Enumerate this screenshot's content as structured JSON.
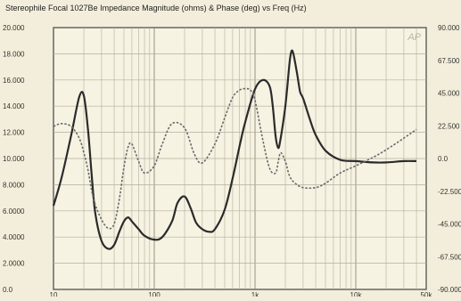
{
  "chart_data": {
    "type": "line",
    "title": "Stereophile Focal 1027Be Impedance Magnitude (ohms) & Phase (deg) vs Freq (Hz)",
    "watermark": "AP",
    "xscale": "log",
    "xlim": [
      10,
      50000
    ],
    "ylim_left": [
      0,
      20
    ],
    "ylim_right": [
      -90,
      90
    ],
    "grid": true,
    "x_ticks": [
      {
        "value": 10,
        "label": "10"
      },
      {
        "value": 100,
        "label": "100"
      },
      {
        "value": 1000,
        "label": "1k"
      },
      {
        "value": 10000,
        "label": "10k"
      },
      {
        "value": 50000,
        "label": "50k"
      }
    ],
    "y_left_ticks": [
      {
        "value": 20,
        "label": "20.000"
      },
      {
        "value": 18,
        "label": "18.000"
      },
      {
        "value": 16,
        "label": "16.000"
      },
      {
        "value": 14,
        "label": "14.000"
      },
      {
        "value": 12,
        "label": "12.000"
      },
      {
        "value": 10,
        "label": "10.000"
      },
      {
        "value": 8,
        "label": "8.0000"
      },
      {
        "value": 6,
        "label": "6.0000"
      },
      {
        "value": 4,
        "label": "4.0000"
      },
      {
        "value": 2,
        "label": "2.0000"
      },
      {
        "value": 0,
        "label": "0.0"
      }
    ],
    "y_right_ticks": [
      {
        "value": 90,
        "label": "90.000"
      },
      {
        "value": 67.5,
        "label": "67.500"
      },
      {
        "value": 45,
        "label": "45.000"
      },
      {
        "value": 22.5,
        "label": "22.500"
      },
      {
        "value": 0,
        "label": "0.0"
      },
      {
        "value": -22.5,
        "label": "-22.500"
      },
      {
        "value": -45,
        "label": "-45.000"
      },
      {
        "value": -67.5,
        "label": "-67.500"
      },
      {
        "value": -90,
        "label": "-90.000"
      }
    ],
    "series": [
      {
        "axis": "left",
        "color": "#2b2b2b",
        "dashed": false,
        "x": [
          10,
          12,
          15,
          18,
          20,
          22,
          24,
          26,
          30,
          35,
          40,
          45,
          50,
          55,
          60,
          70,
          80,
          100,
          120,
          150,
          170,
          200,
          230,
          260,
          300,
          350,
          400,
          500,
          600,
          700,
          800,
          1000,
          1200,
          1400,
          1500,
          1600,
          1700,
          1800,
          2000,
          2200,
          2300,
          2400,
          2600,
          2800,
          3000,
          3500,
          4000,
          5000,
          7000,
          10000,
          15000,
          20000,
          30000,
          40000
        ],
        "y": [
          6.4,
          8.5,
          11.8,
          14.7,
          14.8,
          12.2,
          8.6,
          5.8,
          3.7,
          3.1,
          3.4,
          4.4,
          5.2,
          5.5,
          5.2,
          4.6,
          4.1,
          3.8,
          4.0,
          5.2,
          6.6,
          7.1,
          6.2,
          5.1,
          4.6,
          4.4,
          4.6,
          6.1,
          8.5,
          10.9,
          12.8,
          15.3,
          16.0,
          15.5,
          14.0,
          11.7,
          10.8,
          11.6,
          14.0,
          17.3,
          18.2,
          18.0,
          16.6,
          15.1,
          14.6,
          13.0,
          11.8,
          10.6,
          9.9,
          9.8,
          9.7,
          9.7,
          9.8,
          9.8
        ]
      },
      {
        "axis": "right",
        "color": "#6a6a6a",
        "dashed": true,
        "x": [
          10,
          12,
          15,
          18,
          20,
          22,
          25,
          30,
          35,
          40,
          45,
          50,
          55,
          60,
          70,
          80,
          100,
          120,
          150,
          200,
          250,
          300,
          400,
          500,
          600,
          700,
          800,
          900,
          1000,
          1200,
          1400,
          1600,
          1700,
          1800,
          2000,
          2200,
          2500,
          3000,
          4000,
          5000,
          7000,
          10000,
          15000,
          20000,
          30000,
          40000
        ],
        "y": [
          22,
          24,
          22,
          14,
          4,
          -8,
          -28,
          -42,
          -48,
          -45,
          -28,
          -6,
          8,
          10,
          -2,
          -10,
          -5,
          10,
          24,
          21,
          3,
          -3,
          10,
          28,
          42,
          47,
          48,
          47,
          40,
          12,
          -7,
          -10,
          -2,
          4,
          -2,
          -12,
          -17,
          -20,
          -20,
          -17,
          -10,
          -5,
          1,
          6,
          14,
          20
        ]
      }
    ]
  }
}
